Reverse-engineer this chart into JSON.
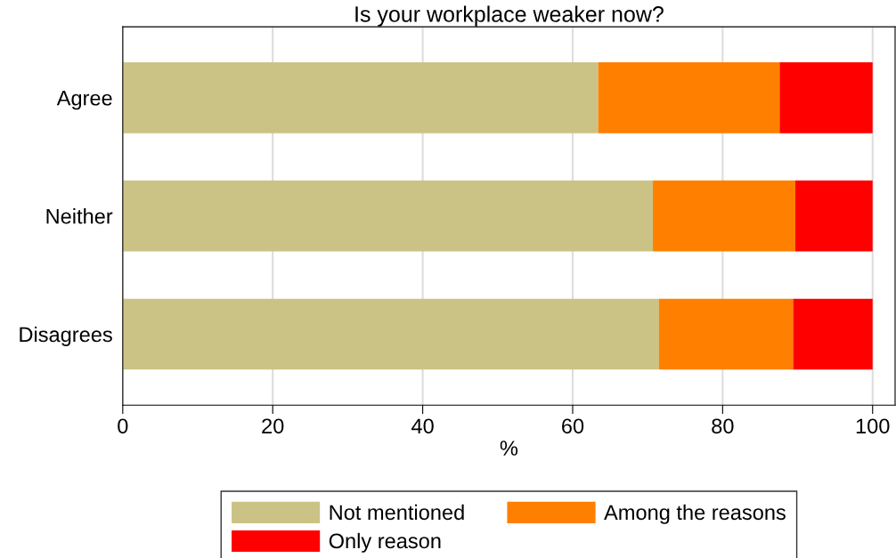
{
  "chart_data": {
    "type": "bar",
    "orientation": "horizontal",
    "stacked": true,
    "title": "Is your workplace weaker now?",
    "xlabel": "%",
    "categories": [
      "Agree",
      "Neither",
      "Disagrees"
    ],
    "series": [
      {
        "name": "Not mentioned",
        "color": "#cbc385",
        "values": [
          63.4,
          70.7,
          71.5
        ]
      },
      {
        "name": "Among the reasons",
        "color": "#ff7f00",
        "values": [
          24.2,
          19.0,
          17.9
        ]
      },
      {
        "name": "Only reason",
        "color": "#ff0000",
        "values": [
          12.4,
          10.3,
          10.6
        ]
      }
    ],
    "xlim": [
      0,
      103
    ],
    "xticks": [
      0,
      20,
      40,
      60,
      80,
      100
    ],
    "grid": "x",
    "legend": "bottom"
  }
}
